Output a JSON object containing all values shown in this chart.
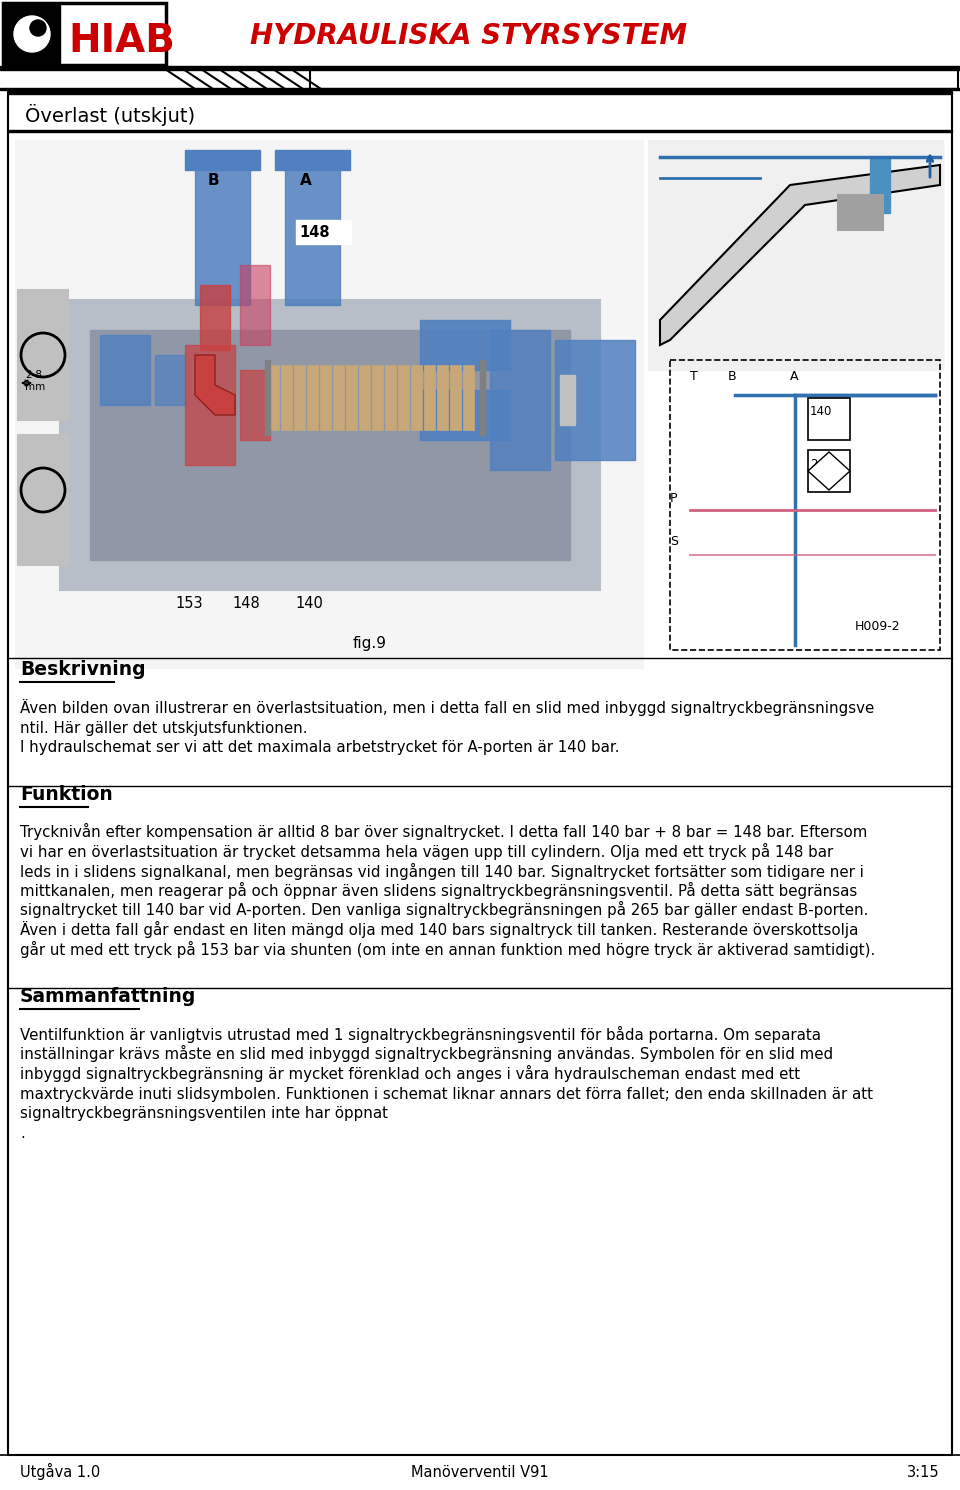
{
  "title_header": "HYDRAULISKA STYRSYSTEM",
  "section_title": "Överlast (utskjut)",
  "fig_label": "fig.9",
  "ref_label": "H009-2",
  "beskrivning_heading": "Beskrivning",
  "beskrivning_lines": [
    "Även bilden ovan illustrerar en överlastsituation, men i detta fall en slid med inbyggd signaltryckbegränsningsve",
    "ntil. Här gäller det utskjutsfunktionen.",
    "I hydraulschemat ser vi att det maximala arbetstrycket för A-porten är 140 bar."
  ],
  "funktion_heading": "Funktion",
  "funktion_lines": [
    "Trycknivån efter kompensation är alltid 8 bar över signaltrycket. I detta fall 140 bar + 8 bar = 148 bar. Eftersom",
    "vi har en överlastsituation är trycket detsamma hela vägen upp till cylindern. Olja med ett tryck på 148 bar",
    "leds in i slidens signalkanal, men begränsas vid ingången till 140 bar. Signaltrycket fortsätter som tidigare ner i",
    "mittkanalen, men reagerar på och öppnar även slidens signaltryckbegränsningsventil. På detta sätt begränsas",
    "signaltrycket till 140 bar vid A-porten. Den vanliga signaltryckbegränsningen på 265 bar gäller endast B-porten.",
    "Även i detta fall går endast en liten mängd olja med 140 bars signaltryck till tanken. Resterande överskottsolja",
    "går ut med ett tryck på 153 bar via shunten (om inte en annan funktion med högre tryck är aktiverad samtidigt)."
  ],
  "sammanfattning_heading": "Sammanfattning",
  "sammanfattning_lines": [
    "Ventilfunktion är vanligtvis utrustad med 1 signaltryckbegränsningsventil för båda portarna. Om separata",
    "inställningar krävs måste en slid med inbyggd signaltryckbegränsning användas. Symbolen för en slid med",
    "inbyggd signaltryckbegränsning är mycket förenklad och anges i våra hydraulscheman endast med ett",
    "maxtryckvärde inuti slidsymbolen. Funktionen i schemat liknar annars det förra fallet; den enda skillnaden är att",
    "signaltryckbegränsningsventilen inte har öppnat",
    "."
  ],
  "footer_left": "Utgåva 1.0",
  "footer_center": "Manöverventil V91",
  "footer_right": "3:15",
  "hiab_color": "#cc0000",
  "title_color": "#cc0000"
}
